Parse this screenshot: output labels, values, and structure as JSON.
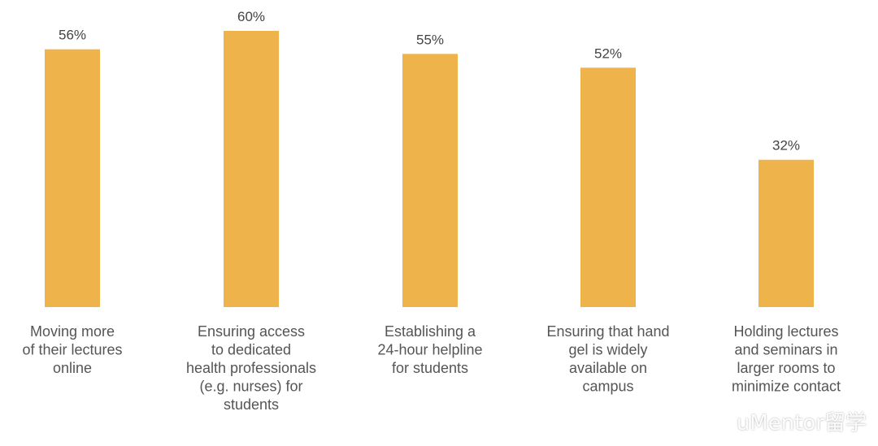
{
  "chart_data": {
    "type": "bar",
    "categories": [
      [
        "Moving more",
        "of their lectures",
        "online"
      ],
      [
        "Ensuring access",
        "to dedicated",
        "health professionals",
        "(e.g. nurses) for",
        "students"
      ],
      [
        "Establishing a",
        "24-hour helpline",
        "for students"
      ],
      [
        "Ensuring that hand",
        "gel is widely",
        "available on",
        "campus"
      ],
      [
        "Holding lectures",
        "and seminars in",
        "larger rooms to",
        "minimize contact"
      ]
    ],
    "values": [
      56,
      60,
      55,
      52,
      32
    ],
    "value_labels": [
      "56%",
      "60%",
      "55%",
      "52%",
      "32%"
    ],
    "ylim": [
      0,
      60
    ],
    "grid": false,
    "bar_color": "#EFB34B"
  },
  "watermark": {
    "text": "uMentor留学",
    "icon": "weibo-logo-icon"
  }
}
